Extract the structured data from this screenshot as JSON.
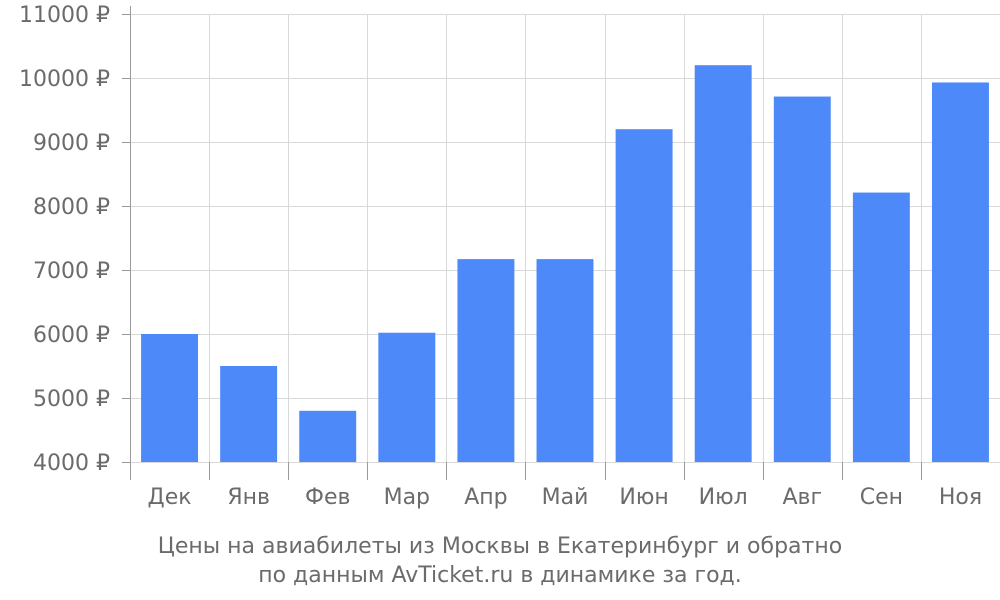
{
  "chart_data": {
    "type": "bar",
    "categories": [
      "Дек",
      "Янв",
      "Фев",
      "Мар",
      "Апр",
      "Май",
      "Июн",
      "Июл",
      "Авг",
      "Сен",
      "Ноя"
    ],
    "values": [
      6000,
      5500,
      4800,
      6020,
      7170,
      7170,
      9200,
      10200,
      9710,
      8210,
      9930
    ],
    "ylim": [
      4000,
      11000
    ],
    "yticks": [
      4000,
      5000,
      6000,
      7000,
      8000,
      9000,
      10000,
      11000
    ],
    "ytick_labels": [
      "4000 ₽",
      "5000 ₽",
      "6000 ₽",
      "7000 ₽",
      "8000 ₽",
      "9000 ₽",
      "10000 ₽",
      "11000 ₽"
    ],
    "grid": true,
    "bar_color": "#4d89f9",
    "grid_color": "#d9d9d9",
    "text_color": "#6b6b6b"
  },
  "caption": {
    "line1": "Цены на авиабилеты из Москвы в Екатеринбург и обратно",
    "line2": "по данным AvTicket.ru в динамике за год."
  }
}
